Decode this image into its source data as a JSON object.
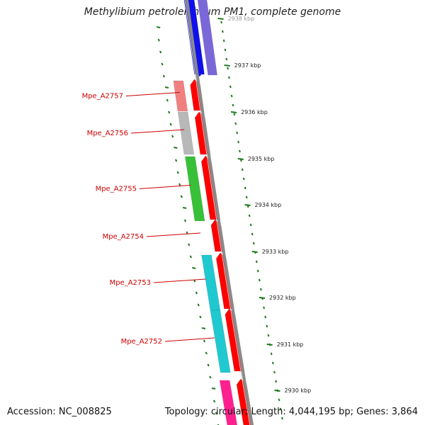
{
  "title": "Methylibium petroleiphilum PM1, complete genome",
  "accession_label": "Accession:",
  "accession": "NC_008825",
  "topology_label": "Topology:",
  "topology": "circular",
  "length_label": "Length:",
  "length": "4,044,195 bp",
  "genes_label": "Genes:",
  "genes": "3,864",
  "colors": {
    "backbone": "#8a8a8a",
    "tick": "#1e7a1e",
    "gene_label": "#cc0000",
    "arrow": "#ff0000",
    "blue": "#1010ee",
    "purple": "#7b68d8",
    "pink": "#f08080",
    "gray": "#b8b8b8",
    "green": "#38c038",
    "cyan": "#20c8d0",
    "magenta": "#ff2090"
  },
  "scale_labels": [
    "2938 kbp",
    "2937 kbp",
    "2936 kbp",
    "2935 kbp",
    "2934 kbp",
    "2933 kbp",
    "2932 kbp",
    "2931 kbp",
    "2930 kbp"
  ],
  "genes_list": [
    {
      "label": "Mpe_A2757",
      "color": "pink"
    },
    {
      "label": "Mpe_A2756",
      "color": "gray"
    },
    {
      "label": "Mpe_A2755",
      "color": "green"
    },
    {
      "label": "Mpe_A2754",
      "color": "none"
    },
    {
      "label": "Mpe_A2753",
      "color": "cyan"
    },
    {
      "label": "Mpe_A2752",
      "color": "cyan"
    }
  ],
  "unlabeled_features": [
    {
      "name": "blue-gene-strip",
      "color": "blue"
    },
    {
      "name": "purple-gene-strip",
      "color": "purple"
    },
    {
      "name": "magenta-gene-strip",
      "color": "magenta"
    }
  ]
}
